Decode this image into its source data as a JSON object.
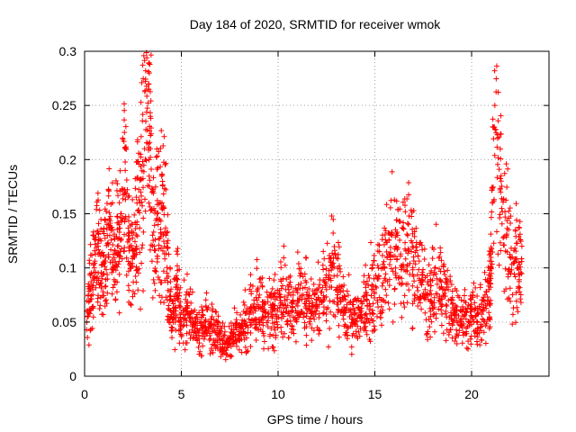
{
  "chart_data": {
    "type": "scatter",
    "title": "Day 184 of 2020, SRMTID for receiver wmok",
    "xlabel": "GPS time / hours",
    "ylabel": "SRMTID / TECUs",
    "xlim": [
      0,
      24
    ],
    "ylim": [
      0,
      0.3
    ],
    "xticks": [
      0,
      5,
      10,
      15,
      20
    ],
    "yticks": [
      0,
      0.05,
      0.1,
      0.15,
      0.2,
      0.25,
      0.3
    ],
    "xtick_labels": [
      "0",
      "5",
      "10",
      "15",
      "20"
    ],
    "ytick_labels": [
      "0",
      "0.05",
      "0.1",
      "0.15",
      "0.2",
      "0.25",
      "0.3"
    ],
    "grid": true,
    "marker": "+",
    "series": [
      {
        "name": "SRMTID",
        "color": "#ff0000",
        "x": [
          0.1,
          0.3,
          0.5,
          0.7,
          0.9,
          1.1,
          1.3,
          1.5,
          1.7,
          1.9,
          2.1,
          2.3,
          2.5,
          2.7,
          2.9,
          3.1,
          3.3,
          3.4,
          3.6,
          3.8,
          4.0,
          4.2,
          4.4,
          4.6,
          4.8,
          5.0,
          5.3,
          5.6,
          5.9,
          6.2,
          6.5,
          6.8,
          7.1,
          7.4,
          7.7,
          8.0,
          8.3,
          8.6,
          8.9,
          9.2,
          9.5,
          9.8,
          10.1,
          10.4,
          10.7,
          11.0,
          11.3,
          11.6,
          11.9,
          12.2,
          12.5,
          12.8,
          13.1,
          13.4,
          13.7,
          14.0,
          14.3,
          14.6,
          14.9,
          15.2,
          15.5,
          15.8,
          16.1,
          16.4,
          16.7,
          17.0,
          17.3,
          17.6,
          17.9,
          18.2,
          18.5,
          18.8,
          19.1,
          19.4,
          19.7,
          20.0,
          20.3,
          20.6,
          20.9,
          21.0,
          21.2,
          21.5,
          21.8,
          22.1,
          22.4,
          22.6
        ],
        "y": [
          0.06,
          0.08,
          0.1,
          0.12,
          0.09,
          0.11,
          0.13,
          0.1,
          0.12,
          0.15,
          0.19,
          0.13,
          0.11,
          0.14,
          0.17,
          0.21,
          0.265,
          0.24,
          0.12,
          0.14,
          0.16,
          0.13,
          0.07,
          0.06,
          0.08,
          0.05,
          0.06,
          0.05,
          0.04,
          0.05,
          0.045,
          0.04,
          0.035,
          0.03,
          0.04,
          0.035,
          0.05,
          0.06,
          0.07,
          0.06,
          0.055,
          0.065,
          0.07,
          0.08,
          0.06,
          0.07,
          0.075,
          0.065,
          0.06,
          0.07,
          0.08,
          0.1,
          0.08,
          0.06,
          0.055,
          0.05,
          0.06,
          0.07,
          0.08,
          0.09,
          0.1,
          0.11,
          0.12,
          0.1,
          0.13,
          0.11,
          0.09,
          0.08,
          0.07,
          0.09,
          0.08,
          0.07,
          0.06,
          0.05,
          0.06,
          0.055,
          0.05,
          0.06,
          0.08,
          0.1,
          0.25,
          0.17,
          0.13,
          0.11,
          0.1,
          0.12
        ]
      }
    ]
  }
}
